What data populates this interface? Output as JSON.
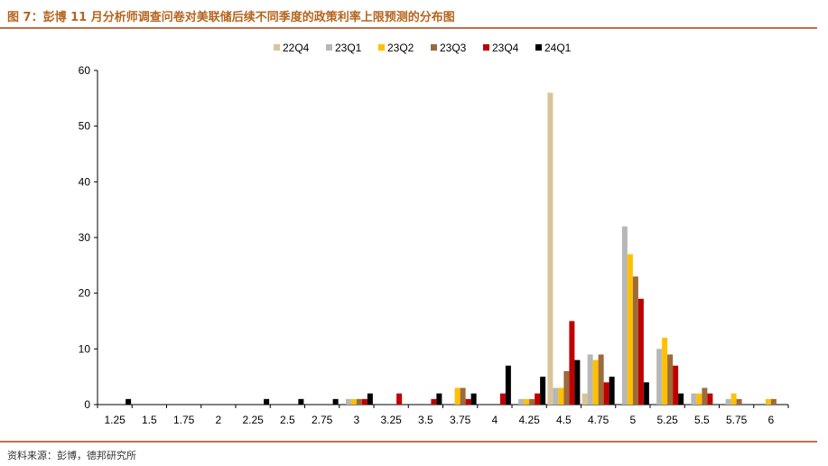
{
  "figure_title": "图 7：彭博 11 月分析师调查问卷对美联储后续不同季度的政策利率上限预测的分布图",
  "source_note": "资料来源：彭博，德邦研究所",
  "chart_data": {
    "type": "bar",
    "categories": [
      "1.25",
      "1.5",
      "1.75",
      "2",
      "2.25",
      "2.5",
      "2.75",
      "3",
      "3.25",
      "3.5",
      "3.75",
      "4",
      "4.25",
      "4.5",
      "4.75",
      "5",
      "5.25",
      "5.5",
      "5.75",
      "6"
    ],
    "ylim": [
      0,
      60
    ],
    "yticks": [
      0,
      10,
      20,
      30,
      40,
      50,
      60
    ],
    "legend_position": "top-center",
    "grid": false,
    "series": [
      {
        "name": "22Q4",
        "color": "#d9c49a",
        "values": [
          0,
          0,
          0,
          0,
          0,
          0,
          0,
          0,
          0,
          0,
          0,
          0,
          0,
          56,
          2,
          0,
          0,
          0,
          0,
          0
        ]
      },
      {
        "name": "23Q1",
        "color": "#b7b7b7",
        "values": [
          0,
          0,
          0,
          0,
          0,
          0,
          0,
          1,
          0,
          0,
          0,
          0,
          1,
          3,
          9,
          32,
          10,
          2,
          1,
          0
        ]
      },
      {
        "name": "23Q2",
        "color": "#ffc000",
        "values": [
          0,
          0,
          0,
          0,
          0,
          0,
          0,
          1,
          0,
          0,
          3,
          0,
          1,
          3,
          8,
          27,
          12,
          2,
          2,
          1
        ]
      },
      {
        "name": "23Q3",
        "color": "#9c6b3a",
        "values": [
          0,
          0,
          0,
          0,
          0,
          0,
          0,
          1,
          0,
          0,
          3,
          0,
          1,
          6,
          9,
          23,
          9,
          3,
          1,
          1
        ]
      },
      {
        "name": "23Q4",
        "color": "#c00000",
        "values": [
          0,
          0,
          0,
          0,
          0,
          0,
          0,
          1,
          2,
          1,
          1,
          2,
          2,
          15,
          4,
          19,
          7,
          2,
          0,
          0
        ]
      },
      {
        "name": "24Q1",
        "color": "#000000",
        "values": [
          1,
          0,
          0,
          0,
          1,
          1,
          1,
          2,
          0,
          2,
          2,
          7,
          5,
          8,
          5,
          4,
          2,
          0,
          0,
          0
        ]
      }
    ]
  }
}
